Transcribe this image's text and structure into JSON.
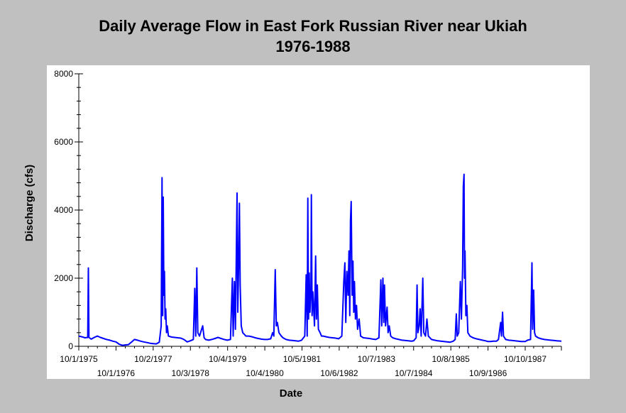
{
  "chart_data": {
    "type": "line",
    "title": "Daily Average Flow in East Fork Russian River near Ukiah",
    "subtitle": "1976-1988",
    "xlabel": "Date",
    "ylabel": "Discharge (cfs)",
    "ylim": [
      0,
      8000
    ],
    "y_ticks": [
      0,
      2000,
      4000,
      6000,
      8000
    ],
    "xlim": [
      "1975-10-01",
      "1988-09-30"
    ],
    "x_tick_labels": [
      {
        "date": "1975-10-01",
        "label": "10/1/1975"
      },
      {
        "date": "1976-10-01",
        "label": "10/1/1976"
      },
      {
        "date": "1977-10-02",
        "label": "10/2/1977"
      },
      {
        "date": "1978-10-03",
        "label": "10/3/1978"
      },
      {
        "date": "1979-10-04",
        "label": "10/4/1979"
      },
      {
        "date": "1980-10-04",
        "label": "10/4/1980"
      },
      {
        "date": "1981-10-05",
        "label": "10/5/1981"
      },
      {
        "date": "1982-10-06",
        "label": "10/6/1982"
      },
      {
        "date": "1983-10-07",
        "label": "10/7/1983"
      },
      {
        "date": "1984-10-07",
        "label": "10/7/1984"
      },
      {
        "date": "1985-10-08",
        "label": "10/8/1985"
      },
      {
        "date": "1986-10-09",
        "label": "10/9/1986"
      },
      {
        "date": "1987-10-10",
        "label": "10/10/1987"
      }
    ],
    "grid": false,
    "legend": "none",
    "series": [
      {
        "color": "#0000ff",
        "points": [
          [
            "1975-10-01",
            300
          ],
          [
            "1975-11-01",
            280
          ],
          [
            "1975-12-01",
            250
          ],
          [
            "1975-12-28",
            260
          ],
          [
            "1976-01-03",
            2300
          ],
          [
            "1976-01-09",
            260
          ],
          [
            "1976-02-01",
            210
          ],
          [
            "1976-03-01",
            260
          ],
          [
            "1976-04-01",
            300
          ],
          [
            "1976-05-01",
            260
          ],
          [
            "1976-06-01",
            230
          ],
          [
            "1976-07-01",
            200
          ],
          [
            "1976-08-01",
            180
          ],
          [
            "1976-09-01",
            150
          ],
          [
            "1976-10-01",
            130
          ],
          [
            "1976-11-01",
            60
          ],
          [
            "1976-12-01",
            30
          ],
          [
            "1977-01-01",
            40
          ],
          [
            "1977-02-01",
            50
          ],
          [
            "1977-03-01",
            120
          ],
          [
            "1977-04-01",
            200
          ],
          [
            "1977-05-01",
            180
          ],
          [
            "1977-06-01",
            150
          ],
          [
            "1977-07-01",
            130
          ],
          [
            "1977-08-01",
            110
          ],
          [
            "1977-09-01",
            90
          ],
          [
            "1977-10-01",
            80
          ],
          [
            "1977-11-01",
            70
          ],
          [
            "1977-12-01",
            120
          ],
          [
            "1977-12-20",
            600
          ],
          [
            "1977-12-28",
            4950
          ],
          [
            "1978-01-03",
            900
          ],
          [
            "1978-01-09",
            4380
          ],
          [
            "1978-01-15",
            1500
          ],
          [
            "1978-01-21",
            2200
          ],
          [
            "1978-01-27",
            800
          ],
          [
            "1978-02-02",
            1100
          ],
          [
            "1978-02-10",
            400
          ],
          [
            "1978-02-18",
            600
          ],
          [
            "1978-03-01",
            300
          ],
          [
            "1978-04-01",
            270
          ],
          [
            "1978-05-01",
            260
          ],
          [
            "1978-06-01",
            250
          ],
          [
            "1978-07-01",
            240
          ],
          [
            "1978-08-01",
            200
          ],
          [
            "1978-09-01",
            130
          ],
          [
            "1978-10-01",
            160
          ],
          [
            "1978-11-01",
            200
          ],
          [
            "1978-11-15",
            1700
          ],
          [
            "1978-11-25",
            300
          ],
          [
            "1978-12-05",
            2300
          ],
          [
            "1978-12-15",
            400
          ],
          [
            "1979-01-01",
            300
          ],
          [
            "1979-02-01",
            600
          ],
          [
            "1979-02-15",
            250
          ],
          [
            "1979-03-01",
            200
          ],
          [
            "1979-04-01",
            180
          ],
          [
            "1979-05-01",
            200
          ],
          [
            "1979-06-01",
            230
          ],
          [
            "1979-07-01",
            260
          ],
          [
            "1979-08-01",
            230
          ],
          [
            "1979-09-01",
            200
          ],
          [
            "1979-10-01",
            180
          ],
          [
            "1979-11-01",
            200
          ],
          [
            "1979-11-20",
            2000
          ],
          [
            "1979-11-28",
            300
          ],
          [
            "1979-12-10",
            1900
          ],
          [
            "1979-12-20",
            500
          ],
          [
            "1980-01-05",
            4500
          ],
          [
            "1980-01-12",
            1000
          ],
          [
            "1980-01-20",
            2300
          ],
          [
            "1980-01-28",
            4200
          ],
          [
            "1980-02-05",
            1800
          ],
          [
            "1980-02-15",
            600
          ],
          [
            "1980-03-01",
            400
          ],
          [
            "1980-04-01",
            300
          ],
          [
            "1980-05-01",
            300
          ],
          [
            "1980-06-01",
            280
          ],
          [
            "1980-07-01",
            250
          ],
          [
            "1980-08-01",
            230
          ],
          [
            "1980-09-01",
            210
          ],
          [
            "1980-10-01",
            200
          ],
          [
            "1980-11-01",
            200
          ],
          [
            "1980-12-01",
            220
          ],
          [
            "1980-12-20",
            400
          ],
          [
            "1981-01-01",
            300
          ],
          [
            "1981-01-15",
            2250
          ],
          [
            "1981-01-25",
            600
          ],
          [
            "1981-02-05",
            700
          ],
          [
            "1981-02-20",
            400
          ],
          [
            "1981-03-15",
            300
          ],
          [
            "1981-04-01",
            250
          ],
          [
            "1981-05-01",
            200
          ],
          [
            "1981-06-01",
            180
          ],
          [
            "1981-07-01",
            170
          ],
          [
            "1981-08-01",
            160
          ],
          [
            "1981-09-01",
            150
          ],
          [
            "1981-10-01",
            180
          ],
          [
            "1981-11-01",
            300
          ],
          [
            "1981-11-15",
            2100
          ],
          [
            "1981-11-25",
            300
          ],
          [
            "1981-12-01",
            4350
          ],
          [
            "1981-12-08",
            800
          ],
          [
            "1981-12-15",
            2150
          ],
          [
            "1981-12-22",
            1000
          ],
          [
            "1982-01-01",
            1700
          ],
          [
            "1982-01-05",
            4450
          ],
          [
            "1982-01-12",
            900
          ],
          [
            "1982-01-20",
            1600
          ],
          [
            "1982-02-05",
            600
          ],
          [
            "1982-02-16",
            2650
          ],
          [
            "1982-02-24",
            800
          ],
          [
            "1982-03-05",
            1800
          ],
          [
            "1982-03-15",
            500
          ],
          [
            "1982-04-01",
            400
          ],
          [
            "1982-04-15",
            300
          ],
          [
            "1982-05-01",
            300
          ],
          [
            "1982-06-01",
            280
          ],
          [
            "1982-07-01",
            260
          ],
          [
            "1982-08-01",
            250
          ],
          [
            "1982-09-01",
            240
          ],
          [
            "1982-10-01",
            220
          ],
          [
            "1982-11-01",
            300
          ],
          [
            "1982-11-20",
            1900
          ],
          [
            "1982-12-01",
            2450
          ],
          [
            "1982-12-10",
            700
          ],
          [
            "1982-12-20",
            2200
          ],
          [
            "1983-01-01",
            1500
          ],
          [
            "1983-01-10",
            2800
          ],
          [
            "1983-01-18",
            900
          ],
          [
            "1983-01-25",
            3700
          ],
          [
            "1983-02-01",
            4250
          ],
          [
            "1983-02-10",
            1500
          ],
          [
            "1983-02-18",
            2500
          ],
          [
            "1983-02-26",
            1000
          ],
          [
            "1983-03-05",
            1900
          ],
          [
            "1983-03-15",
            800
          ],
          [
            "1983-03-25",
            1200
          ],
          [
            "1983-04-05",
            500
          ],
          [
            "1983-04-20",
            800
          ],
          [
            "1983-05-05",
            300
          ],
          [
            "1983-06-01",
            250
          ],
          [
            "1983-07-01",
            240
          ],
          [
            "1983-08-01",
            230
          ],
          [
            "1983-09-01",
            210
          ],
          [
            "1983-10-01",
            200
          ],
          [
            "1983-11-01",
            250
          ],
          [
            "1983-11-20",
            1950
          ],
          [
            "1983-11-28",
            600
          ],
          [
            "1983-12-10",
            2000
          ],
          [
            "1983-12-18",
            700
          ],
          [
            "1983-12-25",
            1800
          ],
          [
            "1984-01-05",
            600
          ],
          [
            "1984-01-20",
            1150
          ],
          [
            "1984-01-30",
            400
          ],
          [
            "1984-02-10",
            600
          ],
          [
            "1984-02-25",
            300
          ],
          [
            "1984-03-15",
            250
          ],
          [
            "1984-04-15",
            220
          ],
          [
            "1984-05-15",
            200
          ],
          [
            "1984-06-15",
            180
          ],
          [
            "1984-07-15",
            170
          ],
          [
            "1984-08-15",
            160
          ],
          [
            "1984-09-15",
            150
          ],
          [
            "1984-10-07",
            160
          ],
          [
            "1984-11-01",
            250
          ],
          [
            "1984-11-10",
            1800
          ],
          [
            "1984-11-18",
            400
          ],
          [
            "1984-12-01",
            600
          ],
          [
            "1984-12-10",
            1100
          ],
          [
            "1984-12-20",
            300
          ],
          [
            "1985-01-05",
            2000
          ],
          [
            "1985-01-15",
            400
          ],
          [
            "1985-02-01",
            300
          ],
          [
            "1985-02-15",
            800
          ],
          [
            "1985-03-01",
            300
          ],
          [
            "1985-04-01",
            200
          ],
          [
            "1985-05-01",
            180
          ],
          [
            "1985-06-01",
            160
          ],
          [
            "1985-07-01",
            150
          ],
          [
            "1985-08-01",
            140
          ],
          [
            "1985-09-01",
            130
          ],
          [
            "1985-10-01",
            120
          ],
          [
            "1985-11-01",
            150
          ],
          [
            "1985-11-20",
            200
          ],
          [
            "1985-12-01",
            950
          ],
          [
            "1985-12-10",
            300
          ],
          [
            "1985-12-25",
            400
          ],
          [
            "1986-01-10",
            1900
          ],
          [
            "1986-01-20",
            800
          ],
          [
            "1986-02-01",
            2300
          ],
          [
            "1986-02-08",
            4700
          ],
          [
            "1986-02-15",
            5050
          ],
          [
            "1986-02-20",
            2000
          ],
          [
            "1986-02-25",
            2800
          ],
          [
            "1986-03-05",
            900
          ],
          [
            "1986-03-15",
            1200
          ],
          [
            "1986-03-25",
            400
          ],
          [
            "1986-04-15",
            300
          ],
          [
            "1986-05-15",
            250
          ],
          [
            "1986-06-15",
            220
          ],
          [
            "1986-07-15",
            200
          ],
          [
            "1986-08-15",
            180
          ],
          [
            "1986-09-15",
            160
          ],
          [
            "1986-10-09",
            140
          ],
          [
            "1986-11-01",
            140
          ],
          [
            "1986-12-01",
            150
          ],
          [
            "1987-01-01",
            150
          ],
          [
            "1987-01-20",
            200
          ],
          [
            "1987-02-10",
            700
          ],
          [
            "1987-02-18",
            300
          ],
          [
            "1987-03-01",
            1000
          ],
          [
            "1987-03-10",
            300
          ],
          [
            "1987-04-01",
            200
          ],
          [
            "1987-05-01",
            180
          ],
          [
            "1987-06-01",
            170
          ],
          [
            "1987-07-01",
            160
          ],
          [
            "1987-08-01",
            150
          ],
          [
            "1987-09-01",
            140
          ],
          [
            "1987-10-10",
            140
          ],
          [
            "1987-11-01",
            180
          ],
          [
            "1987-12-01",
            200
          ],
          [
            "1987-12-15",
            2450
          ],
          [
            "1987-12-22",
            500
          ],
          [
            "1988-01-01",
            1650
          ],
          [
            "1988-01-10",
            400
          ],
          [
            "1988-01-20",
            300
          ],
          [
            "1988-02-15",
            250
          ],
          [
            "1988-03-15",
            220
          ],
          [
            "1988-04-15",
            200
          ],
          [
            "1988-05-15",
            190
          ],
          [
            "1988-06-15",
            180
          ],
          [
            "1988-07-15",
            170
          ],
          [
            "1988-08-15",
            160
          ],
          [
            "1988-09-30",
            150
          ]
        ]
      }
    ]
  }
}
